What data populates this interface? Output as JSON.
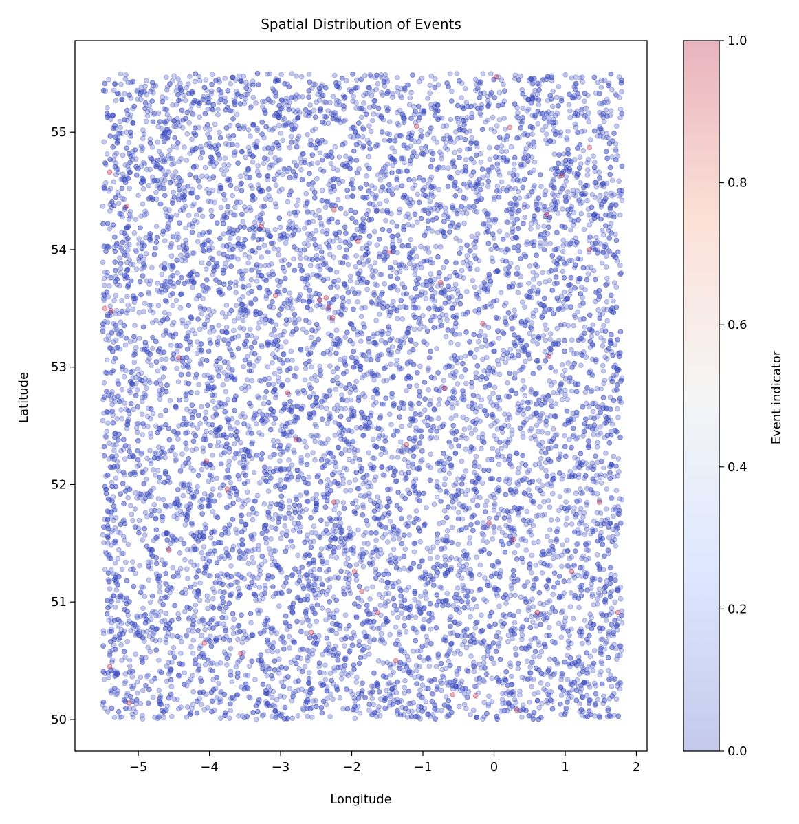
{
  "chart_data": {
    "type": "scatter",
    "title": "Spatial Distribution of Events",
    "xlabel": "Longitude",
    "ylabel": "Latitude",
    "xlim": [
      -5.89,
      2.15
    ],
    "ylim": [
      49.73,
      55.78
    ],
    "xticks": [
      -5,
      -4,
      -3,
      -2,
      -1,
      0,
      1,
      2
    ],
    "xtick_labels": [
      "−5",
      "−4",
      "−3",
      "−2",
      "−1",
      "0",
      "1",
      "2"
    ],
    "yticks": [
      50,
      51,
      52,
      53,
      54,
      55
    ],
    "ytick_labels": [
      "50",
      "51",
      "52",
      "53",
      "54",
      "55"
    ],
    "grid": false,
    "colormap": "coolwarm",
    "point_alpha": 0.3,
    "colors": {
      "event_0": "#3b4cc0",
      "event_1": "#b40426"
    },
    "point_region": {
      "lon": [
        -5.5,
        1.8
      ],
      "lat": [
        50.0,
        55.5
      ]
    },
    "background_points": {
      "event_indicator": 0,
      "distribution": "uniform over point_region"
    },
    "event_points": {
      "event_indicator": 1,
      "lon": [
        -2.45,
        -2.36,
        -2.32,
        -2.27,
        -2.9,
        -5.47,
        -5.38,
        0.95,
        0.03,
        0.74,
        1.34,
        0.77,
        -0.7,
        -1.23,
        -1.86,
        -2.57,
        -3.56,
        -1.38,
        -0.58,
        -0.26,
        0.32,
        -3.75,
        -4.57,
        -5.4,
        -5.13,
        -4.07,
        -1.64,
        0.61,
        1.09,
        1.48,
        -5.4,
        -5.16,
        -3.27,
        -2.25,
        -1.91,
        -1.47,
        -1.09,
        0.22,
        -0.75,
        -0.16,
        -4.43,
        -2.78,
        -2.25,
        -1.96,
        -0.07,
        0.27,
        1.34,
        1.74,
        -4.04,
        -3.07
      ],
      "lat": [
        53.57,
        53.59,
        53.51,
        53.42,
        52.78,
        53.5,
        53.48,
        54.63,
        55.47,
        54.3,
        54.0,
        53.09,
        52.82,
        52.34,
        51.09,
        50.74,
        50.56,
        50.5,
        50.21,
        50.2,
        50.08,
        51.96,
        51.44,
        50.45,
        50.14,
        50.65,
        50.91,
        50.91,
        51.26,
        51.85,
        54.66,
        54.37,
        54.2,
        54.34,
        54.07,
        53.98,
        55.05,
        55.04,
        53.72,
        53.37,
        53.08,
        52.38,
        51.85,
        51.26,
        51.67,
        51.53,
        54.87,
        50.91,
        52.2,
        53.61
      ]
    },
    "colorbar": {
      "label": "Event indicator",
      "range": [
        0,
        1
      ],
      "ticks": [
        0,
        0.2,
        0.4,
        0.6,
        0.8,
        1.0
      ],
      "tick_labels": [
        "0.0",
        "0.2",
        "0.4",
        "0.6",
        "0.8",
        "1.0"
      ]
    }
  }
}
